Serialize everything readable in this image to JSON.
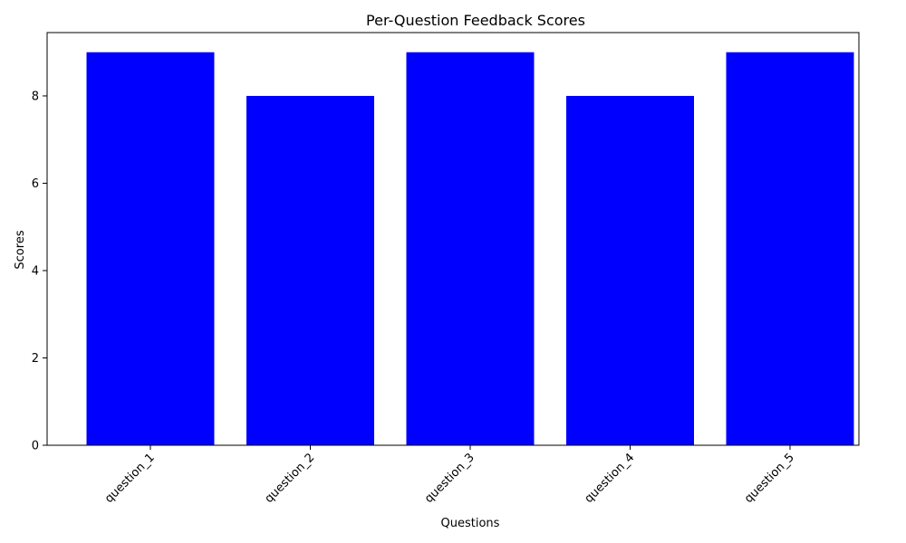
{
  "chart_data": {
    "type": "bar",
    "title": "Per-Question Feedback Scores",
    "xlabel": "Questions",
    "ylabel": "Scores",
    "categories": [
      "question_1",
      "question_2",
      "question_3",
      "question_4",
      "question_5"
    ],
    "values": [
      9,
      8,
      9,
      8,
      9
    ],
    "ylim": [
      0,
      9.45
    ],
    "yticks": [
      0,
      2,
      4,
      6,
      8
    ],
    "bar_color": "#0000ff",
    "grid": false,
    "xtick_rotation_deg": 45
  }
}
